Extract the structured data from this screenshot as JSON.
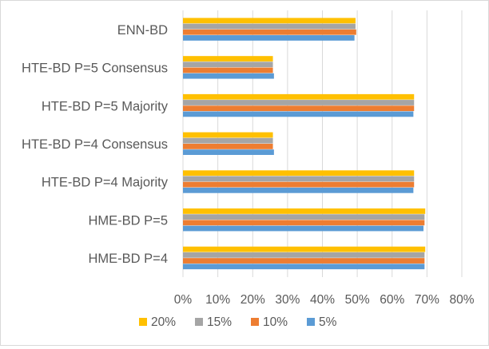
{
  "chart_data": {
    "type": "bar",
    "orientation": "horizontal",
    "title": "",
    "xlabel": "",
    "ylabel": "",
    "xlim": [
      0,
      0.8
    ],
    "tick_step": 0.1,
    "grid": true,
    "legend_position": "bottom",
    "categories": [
      "ENN-BD",
      "HTE-BD P=5 Consensus",
      "HTE-BD P=5 Majority",
      "HTE-BD P=4 Consensus",
      "HTE-BD P=4 Majority",
      "HME-BD P=5",
      "HME-BD P=4"
    ],
    "tick_labels": [
      "0%",
      "10%",
      "20%",
      "30%",
      "40%",
      "50%",
      "60%",
      "70%",
      "80%"
    ],
    "series": [
      {
        "name": "20%",
        "color": "#ffc000",
        "values": [
          0.495,
          0.258,
          0.663,
          0.258,
          0.663,
          0.695,
          0.695
        ]
      },
      {
        "name": "15%",
        "color": "#a5a5a5",
        "values": [
          0.495,
          0.258,
          0.663,
          0.258,
          0.663,
          0.693,
          0.693
        ]
      },
      {
        "name": "10%",
        "color": "#ed7d31",
        "values": [
          0.497,
          0.258,
          0.663,
          0.258,
          0.663,
          0.693,
          0.693
        ]
      },
      {
        "name": "5%",
        "color": "#5b9bd5",
        "values": [
          0.492,
          0.261,
          0.661,
          0.261,
          0.661,
          0.69,
          0.693
        ]
      }
    ]
  }
}
